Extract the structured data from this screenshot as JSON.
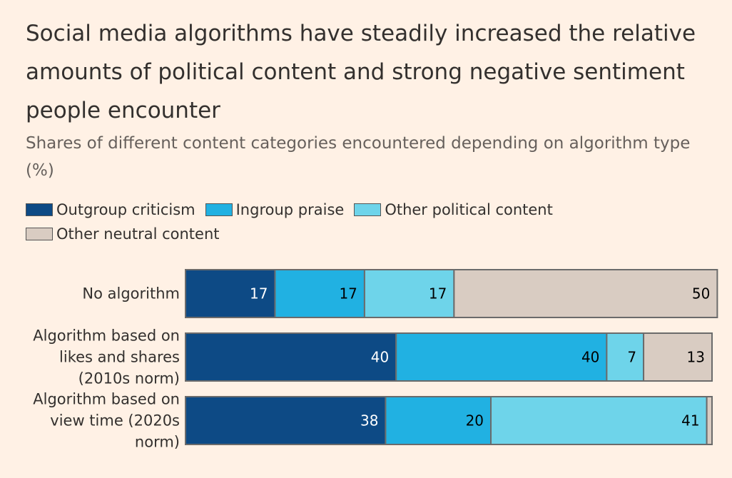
{
  "chart_data": {
    "type": "bar",
    "orientation": "horizontal",
    "stacked": true,
    "title": "Social media algorithms have steadily increased the relative amounts of political content and strong negative sentiment people encounter",
    "subtitle": "Shares of different content categories encountered depending on algorithm type (%)",
    "categories": [
      [
        "No algorithm"
      ],
      [
        "Algorithm based on",
        "likes and shares",
        "(2010s norm)"
      ],
      [
        "Algorithm based on",
        "view time (2020s",
        "norm)"
      ]
    ],
    "series": [
      {
        "name": "Outgroup criticism",
        "color": "#0d4a85",
        "label_color": "#ffffff",
        "values": [
          17,
          40,
          38
        ],
        "labels": [
          "17",
          "40",
          "38"
        ]
      },
      {
        "name": "Ingroup praise",
        "color": "#21b1e2",
        "label_color": "#000000",
        "values": [
          17,
          40,
          20
        ],
        "labels": [
          "17",
          "40",
          "20"
        ]
      },
      {
        "name": "Other political content",
        "color": "#6ed4ea",
        "label_color": "#000000",
        "values": [
          17,
          7,
          41
        ],
        "labels": [
          "17",
          "7",
          "41"
        ]
      },
      {
        "name": "Other neutral content",
        "color": "#d9ccc2",
        "label_color": "#000000",
        "values": [
          50,
          13,
          1
        ],
        "labels": [
          "50",
          "13",
          ""
        ]
      }
    ],
    "xlim": [
      0,
      100
    ],
    "legend_position": "top-left",
    "grid": false
  }
}
